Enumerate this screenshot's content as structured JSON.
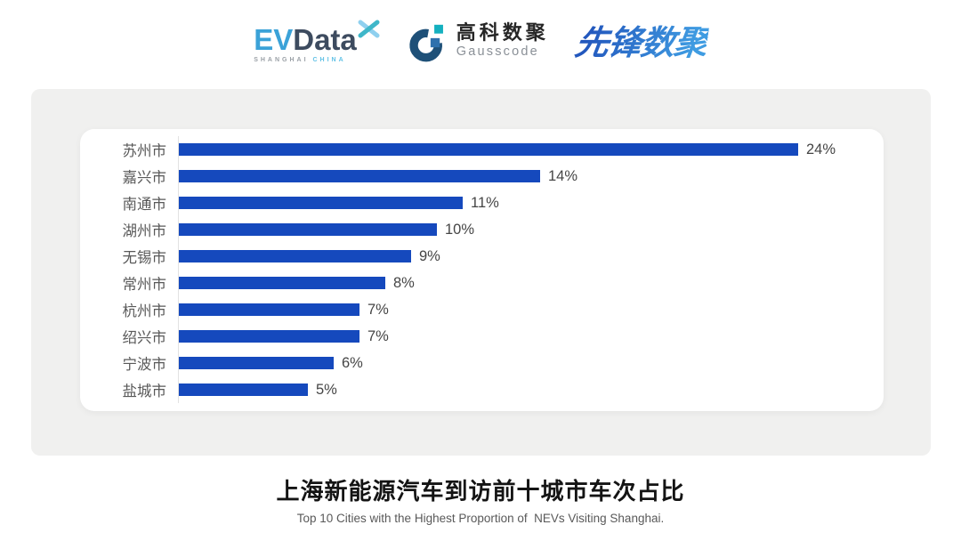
{
  "header": {
    "evdata": {
      "name_part1": "EV",
      "name_part2": "Data",
      "tagline_left": "SHANGHAI",
      "tagline_right": "CHINA"
    },
    "gausscode": {
      "cn_name": "高科数聚",
      "en_name": "Gausscode"
    },
    "xianfeng": {
      "text": "先锋数聚"
    }
  },
  "chart_data": {
    "type": "bar",
    "orientation": "horizontal",
    "title": "上海新能源汽车到访前十城市车次占比",
    "subtitle": "Top 10 Cities with the Highest Proportion of  NEVs Visiting Shanghai.",
    "categories": [
      "苏州市",
      "嘉兴市",
      "南通市",
      "湖州市",
      "无锡市",
      "常州市",
      "杭州市",
      "绍兴市",
      "宁波市",
      "盐城市"
    ],
    "values": [
      24,
      14,
      11,
      10,
      9,
      8,
      7,
      7,
      6,
      5
    ],
    "value_labels": [
      "24%",
      "14%",
      "11%",
      "10%",
      "9%",
      "8%",
      "7%",
      "7%",
      "6%",
      "5%"
    ],
    "unit": "%",
    "xlim": [
      0,
      27
    ],
    "bar_color": "#1549bd",
    "grid": false,
    "legend": false,
    "value_labels_position": "end-of-bar"
  },
  "colors": {
    "bar_blue": "#1549bd",
    "panel_gray": "#f0f0ef",
    "label_gray": "#595959",
    "evdata_blue": "#3ba2d8",
    "evdata_slate": "#3d4b5f",
    "gauss_ring": "#1e5078",
    "gauss_teal": "#14b0bf",
    "gauss_blue": "#2f71ad",
    "xianfeng_blue": "#2e6ecb"
  }
}
